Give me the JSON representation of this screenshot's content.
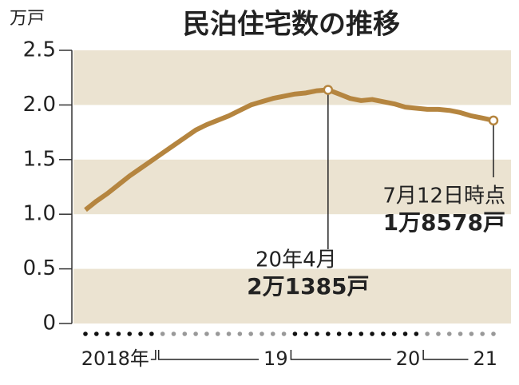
{
  "chart_data": {
    "type": "line",
    "title": "民泊住宅数の推移",
    "y_unit": "万戸",
    "categories": [
      null,
      null,
      null,
      null,
      null,
      null,
      null,
      null,
      null,
      null,
      null,
      null,
      null,
      null,
      null,
      null,
      null,
      null,
      null,
      null,
      null,
      null,
      null,
      null,
      null,
      null,
      null,
      null,
      null,
      null,
      null,
      null,
      null,
      null,
      null,
      null,
      null,
      null
    ],
    "year_groups": [
      {
        "label": "2018年",
        "count": 7,
        "color": "#111111"
      },
      {
        "label": "19",
        "count": 12,
        "color": "#999999"
      },
      {
        "label": "20",
        "count": 12,
        "color": "#111111"
      },
      {
        "label": "21",
        "count": 7,
        "color": "#999999"
      }
    ],
    "series": [
      {
        "name": "民泊住宅数",
        "color": "#b5853f",
        "values": [
          1.04,
          1.12,
          1.19,
          1.27,
          1.35,
          1.42,
          1.49,
          1.56,
          1.63,
          1.7,
          1.77,
          1.82,
          1.86,
          1.9,
          1.95,
          2.0,
          2.03,
          2.06,
          2.08,
          2.1,
          2.11,
          2.13,
          2.1385,
          2.1,
          2.06,
          2.04,
          2.05,
          2.03,
          2.01,
          1.98,
          1.97,
          1.96,
          1.96,
          1.95,
          1.93,
          1.9,
          1.88,
          1.8578
        ]
      }
    ],
    "annotations": [
      {
        "point": 22,
        "date": "20年4月",
        "amount": "2万1385戸"
      },
      {
        "point": 37,
        "date": "7月12日時点",
        "amount": "1万8578戸"
      }
    ],
    "ylim": [
      0,
      2.5
    ],
    "yticks": [
      0,
      0.5,
      {
        "value": 1,
        "label": "1.0"
      },
      1.5,
      {
        "value": 2,
        "label": "2.0"
      },
      2.5
    ],
    "band_color": "#ebe3d1"
  }
}
